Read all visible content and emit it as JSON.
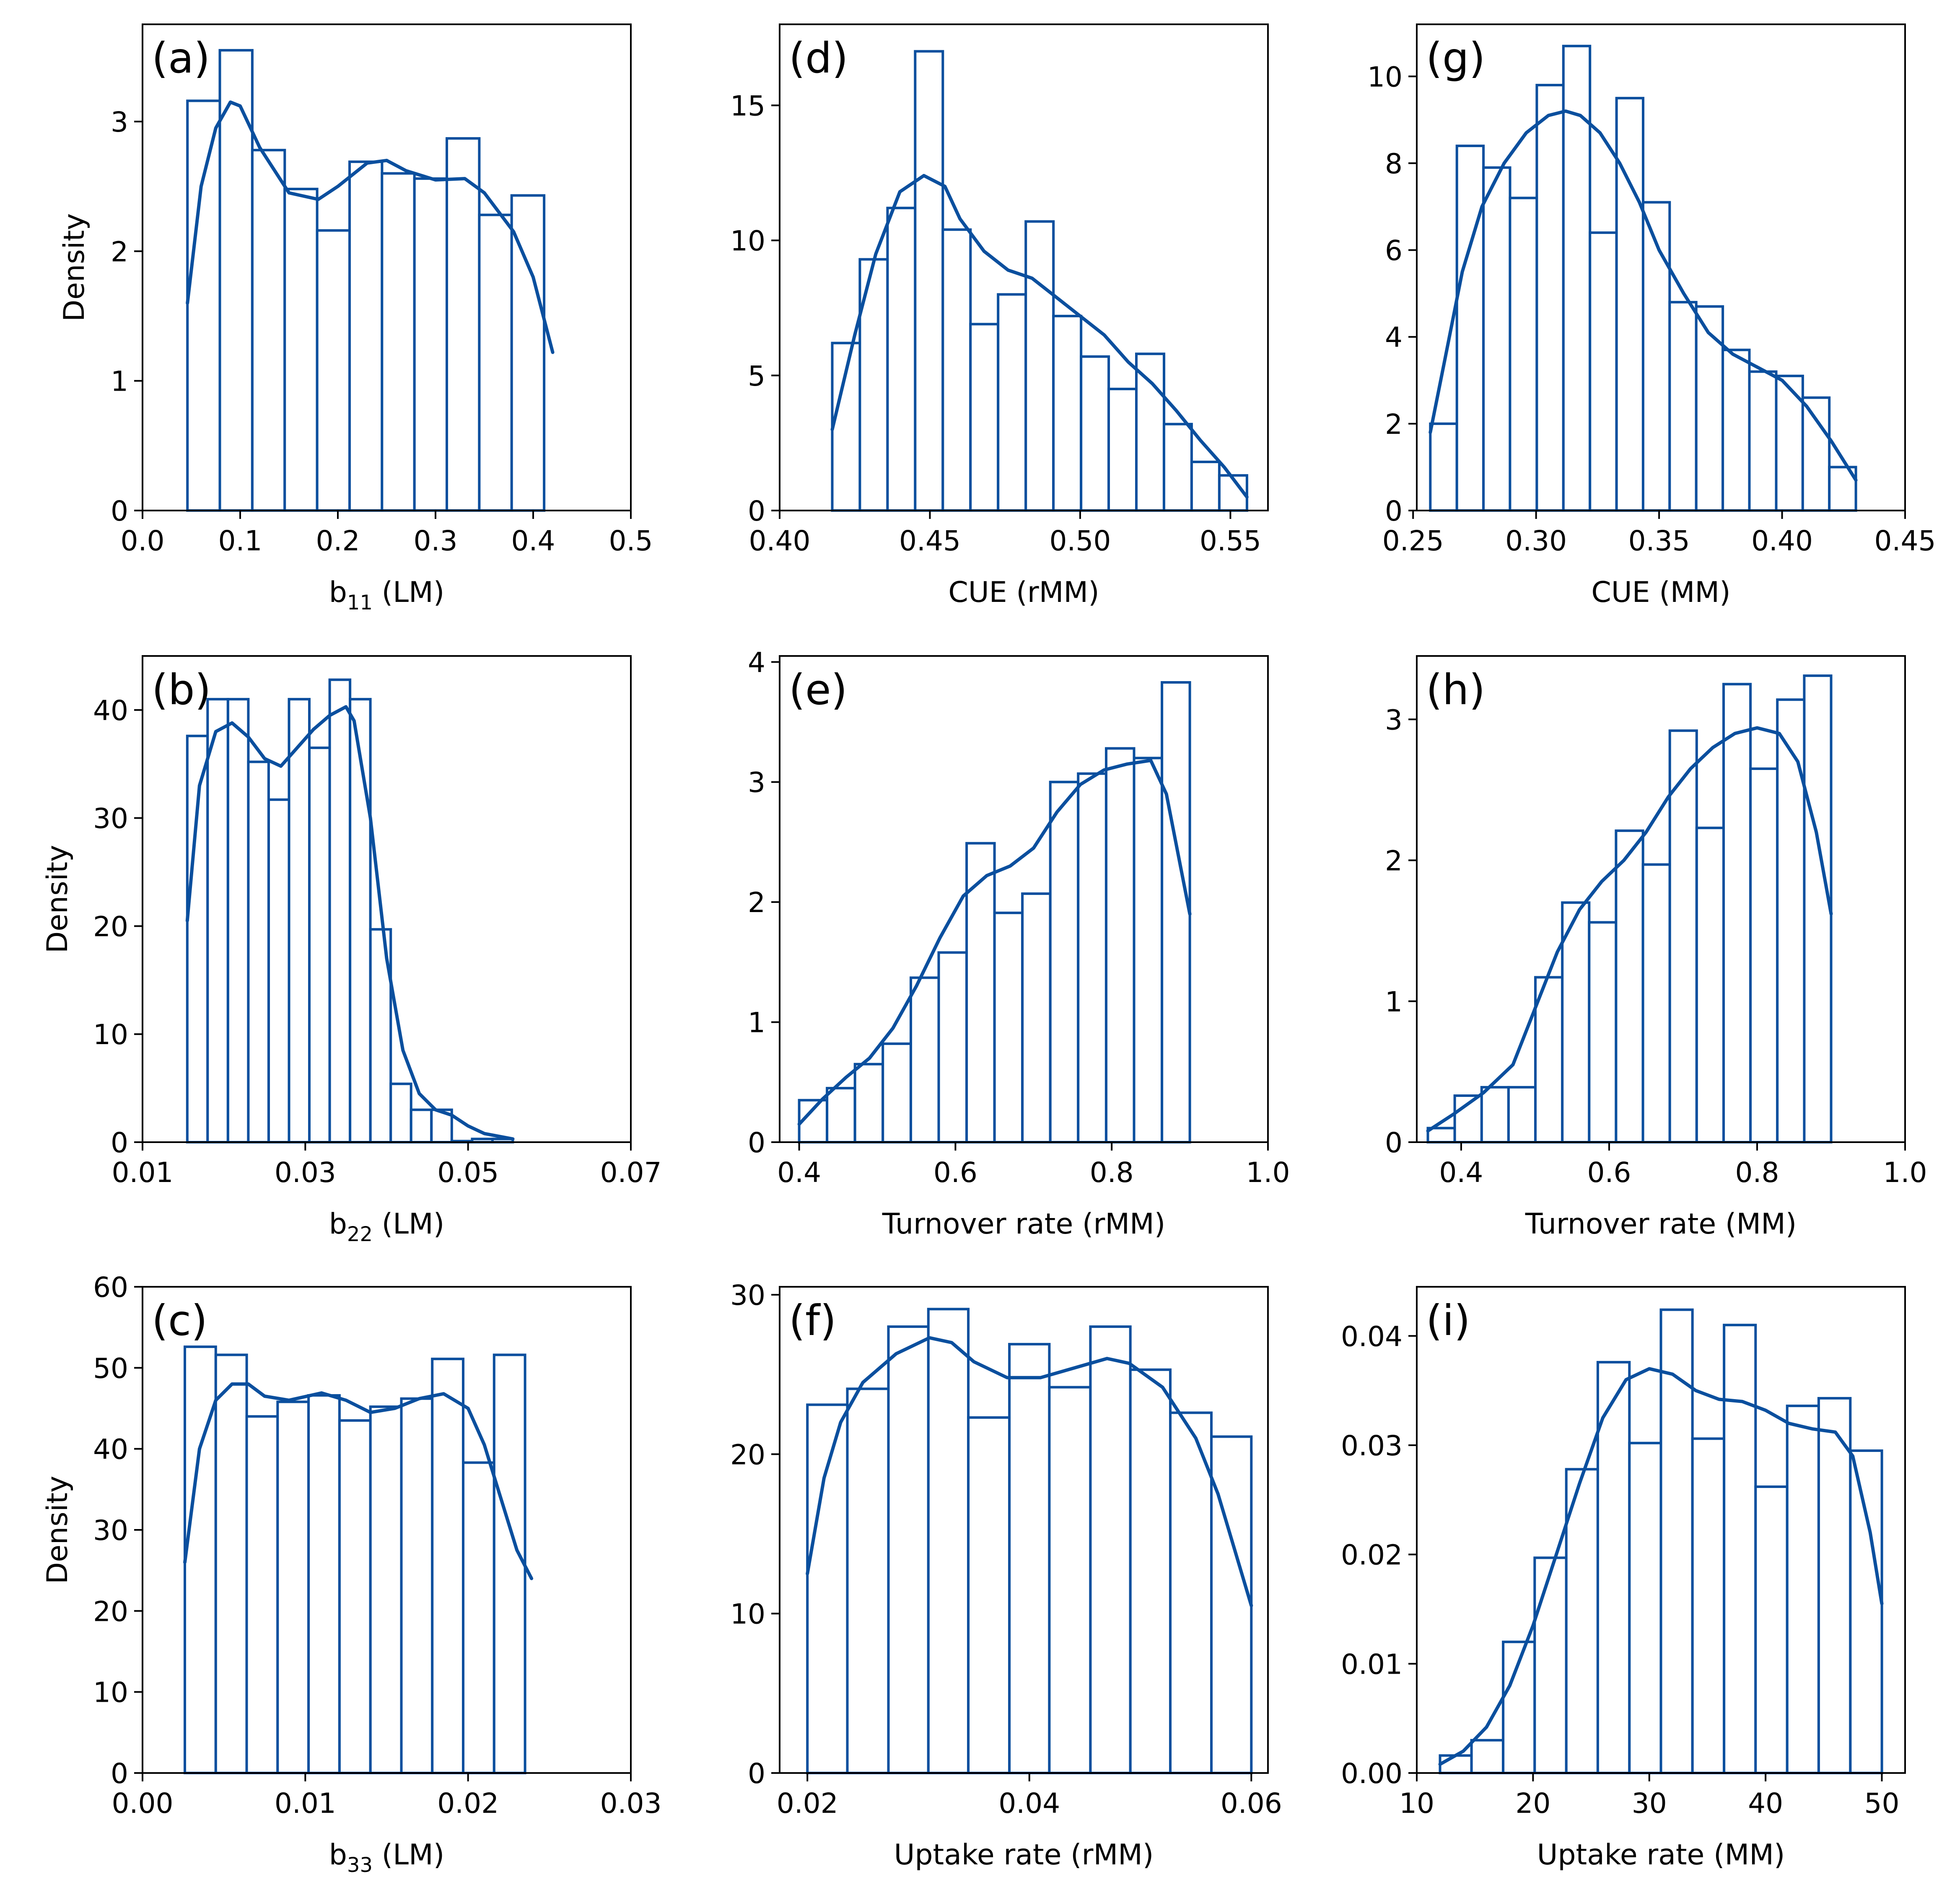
{
  "figure": {
    "line_color": "#0a4f9e",
    "ylabel": "Density"
  },
  "chart_data": [
    {
      "id": "a",
      "type": "bar",
      "panel_label": "(a)",
      "xlabel": {
        "main": "b",
        "sub": "11",
        "rest": " (LM)"
      },
      "ylabel": "Density",
      "xlim": [
        0.0,
        0.5
      ],
      "ylim": [
        0,
        3.75
      ],
      "xticks": [
        0.0,
        0.1,
        0.2,
        0.3,
        0.4,
        0.5
      ],
      "xtick_labels": [
        "0.0",
        "0.1",
        "0.2",
        "0.3",
        "0.4",
        "0.5"
      ],
      "yticks": [
        0,
        1,
        2,
        3
      ],
      "ytick_labels": [
        "0",
        "1",
        "2",
        "3"
      ],
      "bin_edges": [
        0.046,
        0.0792,
        0.1124,
        0.1456,
        0.1788,
        0.212,
        0.2452,
        0.2784,
        0.3116,
        0.3448,
        0.378,
        0.4112
      ],
      "bin_heights": [
        3.16,
        3.55,
        2.78,
        2.48,
        2.16,
        2.69,
        2.6,
        2.56,
        2.87,
        2.28,
        2.43
      ],
      "kde": {
        "x": [
          0.046,
          0.06,
          0.075,
          0.09,
          0.1,
          0.12,
          0.15,
          0.18,
          0.2,
          0.23,
          0.25,
          0.27,
          0.3,
          0.33,
          0.35,
          0.38,
          0.4,
          0.42
        ],
        "y": [
          1.6,
          2.5,
          2.95,
          3.15,
          3.12,
          2.8,
          2.45,
          2.4,
          2.5,
          2.68,
          2.7,
          2.62,
          2.55,
          2.56,
          2.45,
          2.15,
          1.8,
          1.22
        ]
      }
    },
    {
      "id": "b",
      "type": "bar",
      "panel_label": "(b)",
      "xlabel": {
        "main": "b",
        "sub": "22",
        "rest": " (LM)"
      },
      "ylabel": "Density",
      "xlim": [
        0.01,
        0.07
      ],
      "ylim": [
        0,
        45
      ],
      "xticks": [
        0.01,
        0.03,
        0.05,
        0.07
      ],
      "xtick_labels": [
        "0.01",
        "0.03",
        "0.05",
        "0.07"
      ],
      "yticks": [
        0,
        10,
        20,
        30,
        40
      ],
      "ytick_labels": [
        "0",
        "10",
        "20",
        "30",
        "40"
      ],
      "bin_edges": [
        0.0155,
        0.018,
        0.0205,
        0.023,
        0.0255,
        0.028,
        0.0305,
        0.033,
        0.0355,
        0.038,
        0.0405,
        0.043,
        0.0455,
        0.048,
        0.0505,
        0.053,
        0.0555
      ],
      "bin_heights": [
        37.6,
        41.0,
        41.0,
        35.2,
        31.7,
        41.0,
        36.5,
        42.8,
        41.0,
        19.7,
        5.4,
        3.0,
        3.0,
        0.1,
        0.3,
        0.3
      ],
      "kde": {
        "x": [
          0.0155,
          0.017,
          0.019,
          0.021,
          0.023,
          0.025,
          0.027,
          0.029,
          0.031,
          0.033,
          0.035,
          0.036,
          0.038,
          0.04,
          0.042,
          0.044,
          0.046,
          0.048,
          0.05,
          0.052,
          0.0555
        ],
        "y": [
          20.5,
          33.0,
          38.0,
          38.8,
          37.5,
          35.5,
          34.8,
          36.5,
          38.2,
          39.5,
          40.3,
          39.0,
          30.0,
          17.0,
          8.5,
          4.5,
          3.0,
          2.5,
          1.5,
          0.8,
          0.3
        ]
      }
    },
    {
      "id": "c",
      "type": "bar",
      "panel_label": "(c)",
      "xlabel": {
        "main": "b",
        "sub": "33",
        "rest": " (LM)"
      },
      "ylabel": "Density",
      "xlim": [
        0.0,
        0.03
      ],
      "ylim": [
        0,
        60
      ],
      "xticks": [
        0.0,
        0.01,
        0.02,
        0.03
      ],
      "xtick_labels": [
        "0.00",
        "0.01",
        "0.02",
        "0.03"
      ],
      "yticks": [
        0,
        10,
        20,
        30,
        40,
        50,
        60
      ],
      "ytick_labels": [
        "0",
        "10",
        "20",
        "30",
        "40",
        "50",
        "60"
      ],
      "bin_edges": [
        0.0026,
        0.0045,
        0.0064,
        0.0083,
        0.0102,
        0.0121,
        0.014,
        0.0159,
        0.0178,
        0.0197,
        0.0216,
        0.0235
      ],
      "bin_heights": [
        52.6,
        51.6,
        44.0,
        45.8,
        46.6,
        43.5,
        45.2,
        46.2,
        51.1,
        38.3,
        51.6
      ],
      "kde": {
        "x": [
          0.0026,
          0.0035,
          0.0045,
          0.0055,
          0.0065,
          0.0075,
          0.009,
          0.011,
          0.0125,
          0.014,
          0.0155,
          0.017,
          0.0185,
          0.02,
          0.021,
          0.022,
          0.023,
          0.0239
        ],
        "y": [
          26.0,
          40.0,
          46.0,
          48.0,
          48.0,
          46.5,
          46.0,
          46.9,
          46.0,
          44.5,
          45.0,
          46.2,
          46.8,
          45.0,
          40.5,
          34.0,
          27.5,
          24.0
        ]
      }
    },
    {
      "id": "d",
      "type": "bar",
      "panel_label": "(d)",
      "xlabel": {
        "main": "CUE (rMM)",
        "sub": "",
        "rest": ""
      },
      "ylabel": "",
      "xlim": [
        0.4,
        0.5625
      ],
      "ylim": [
        0,
        18
      ],
      "xticks": [
        0.4,
        0.45,
        0.5,
        0.55
      ],
      "xtick_labels": [
        "0.40",
        "0.45",
        "0.50",
        "0.55"
      ],
      "yticks": [
        0,
        5,
        10,
        15
      ],
      "ytick_labels": [
        "0",
        "5",
        "10",
        "15"
      ],
      "bin_edges": [
        0.4175,
        0.4267,
        0.4359,
        0.4451,
        0.4543,
        0.4635,
        0.4727,
        0.4819,
        0.4911,
        0.5003,
        0.5095,
        0.5187,
        0.5279,
        0.5371,
        0.5463,
        0.5555
      ],
      "bin_heights": [
        6.2,
        9.3,
        11.2,
        17.0,
        10.4,
        6.9,
        8.0,
        10.7,
        7.2,
        5.7,
        4.5,
        5.8,
        3.2,
        1.8,
        1.3
      ],
      "kde": {
        "x": [
          0.4175,
          0.425,
          0.432,
          0.44,
          0.448,
          0.455,
          0.46,
          0.468,
          0.476,
          0.484,
          0.492,
          0.5,
          0.508,
          0.516,
          0.524,
          0.532,
          0.54,
          0.548,
          0.5555
        ],
        "y": [
          3.0,
          6.5,
          9.5,
          11.8,
          12.4,
          12.0,
          10.8,
          9.6,
          8.9,
          8.6,
          7.9,
          7.2,
          6.5,
          5.5,
          4.7,
          3.7,
          2.6,
          1.6,
          0.5
        ]
      }
    },
    {
      "id": "e",
      "type": "bar",
      "panel_label": "(e)",
      "xlabel": {
        "main": "Turnover rate (rMM)",
        "sub": "",
        "rest": ""
      },
      "ylabel": "",
      "xlim": [
        0.375,
        1.0
      ],
      "ylim": [
        0,
        4.05
      ],
      "xticks": [
        0.4,
        0.6,
        0.8,
        1.0
      ],
      "xtick_labels": [
        "0.4",
        "0.6",
        "0.8",
        "1.0"
      ],
      "yticks": [
        0,
        1,
        2,
        3,
        4
      ],
      "ytick_labels": [
        "0",
        "1",
        "2",
        "3",
        "4"
      ],
      "bin_edges": [
        0.4,
        0.4357,
        0.4714,
        0.5071,
        0.5429,
        0.5786,
        0.6143,
        0.65,
        0.6857,
        0.7214,
        0.7571,
        0.7929,
        0.8286,
        0.8643,
        0.9
      ],
      "bin_heights": [
        0.35,
        0.45,
        0.65,
        0.82,
        1.37,
        1.58,
        2.49,
        1.91,
        2.07,
        3.0,
        3.07,
        3.28,
        3.2,
        3.83
      ],
      "kde": {
        "x": [
          0.4,
          0.43,
          0.46,
          0.49,
          0.52,
          0.55,
          0.58,
          0.61,
          0.64,
          0.67,
          0.7,
          0.73,
          0.76,
          0.79,
          0.82,
          0.85,
          0.87,
          0.885,
          0.9
        ],
        "y": [
          0.15,
          0.36,
          0.54,
          0.7,
          0.95,
          1.3,
          1.7,
          2.05,
          2.22,
          2.3,
          2.45,
          2.75,
          2.98,
          3.1,
          3.15,
          3.18,
          2.9,
          2.4,
          1.9
        ]
      }
    },
    {
      "id": "f",
      "type": "bar",
      "panel_label": "(f)",
      "xlabel": {
        "main": "Uptake rate (rMM)",
        "sub": "",
        "rest": ""
      },
      "ylabel": "",
      "xlim": [
        0.0175,
        0.0615
      ],
      "ylim": [
        0,
        30.5
      ],
      "xticks": [
        0.02,
        0.04,
        0.06
      ],
      "xtick_labels": [
        "0.02",
        "0.04",
        "0.06"
      ],
      "yticks": [
        0,
        10,
        20,
        30
      ],
      "ytick_labels": [
        "0",
        "10",
        "20",
        "30"
      ],
      "bin_edges": [
        0.02,
        0.0236,
        0.0273,
        0.0309,
        0.0345,
        0.0382,
        0.0418,
        0.0455,
        0.0491,
        0.0527,
        0.0564,
        0.06
      ],
      "bin_heights": [
        23.1,
        24.1,
        28.0,
        29.1,
        22.3,
        26.9,
        24.2,
        28.0,
        25.3,
        22.6,
        21.1
      ],
      "kde": {
        "x": [
          0.02,
          0.0215,
          0.023,
          0.025,
          0.028,
          0.031,
          0.033,
          0.035,
          0.038,
          0.041,
          0.044,
          0.047,
          0.049,
          0.052,
          0.055,
          0.057,
          0.0585,
          0.06
        ],
        "y": [
          12.5,
          18.5,
          22.0,
          24.5,
          26.3,
          27.3,
          27.0,
          25.8,
          24.8,
          24.8,
          25.4,
          26.0,
          25.7,
          24.2,
          21.0,
          17.5,
          14.0,
          10.5
        ]
      }
    },
    {
      "id": "g",
      "type": "bar",
      "panel_label": "(g)",
      "xlabel": {
        "main": "CUE (MM)",
        "sub": "",
        "rest": ""
      },
      "ylabel": "",
      "xlim": [
        0.2515,
        0.45
      ],
      "ylim": [
        0,
        11.2
      ],
      "xticks": [
        0.25,
        0.3,
        0.35,
        0.4,
        0.45
      ],
      "xtick_labels": [
        "0.25",
        "0.30",
        "0.35",
        "0.40",
        "0.45"
      ],
      "yticks": [
        0,
        2,
        4,
        6,
        8,
        10
      ],
      "ytick_labels": [
        "0",
        "2",
        "4",
        "6",
        "8",
        "10"
      ],
      "bin_edges": [
        0.257,
        0.2678,
        0.2786,
        0.2894,
        0.3003,
        0.3111,
        0.3219,
        0.3327,
        0.3435,
        0.3543,
        0.3651,
        0.3759,
        0.3867,
        0.3976,
        0.4084,
        0.4192,
        0.43
      ],
      "bin_heights": [
        2.0,
        8.4,
        7.9,
        7.2,
        9.8,
        10.7,
        6.4,
        9.5,
        7.1,
        4.8,
        4.7,
        3.7,
        3.2,
        3.1,
        2.6,
        1.0
      ],
      "kde": {
        "x": [
          0.257,
          0.263,
          0.27,
          0.278,
          0.287,
          0.296,
          0.305,
          0.312,
          0.318,
          0.326,
          0.334,
          0.342,
          0.35,
          0.36,
          0.37,
          0.38,
          0.39,
          0.4,
          0.41,
          0.42,
          0.43
        ],
        "y": [
          1.8,
          3.5,
          5.5,
          7.0,
          8.0,
          8.7,
          9.1,
          9.2,
          9.1,
          8.7,
          8.0,
          7.1,
          6.0,
          5.0,
          4.1,
          3.6,
          3.3,
          3.0,
          2.4,
          1.6,
          0.7
        ]
      }
    },
    {
      "id": "h",
      "type": "bar",
      "panel_label": "(h)",
      "xlabel": {
        "main": "Turnover rate (MM)",
        "sub": "",
        "rest": ""
      },
      "ylabel": "",
      "xlim": [
        0.34,
        1.0
      ],
      "ylim": [
        0,
        3.45
      ],
      "xticks": [
        0.4,
        0.6,
        0.8,
        1.0
      ],
      "xtick_labels": [
        "0.4",
        "0.6",
        "0.8",
        "1.0"
      ],
      "yticks": [
        0,
        1,
        2,
        3
      ],
      "ytick_labels": [
        "0",
        "1",
        "2",
        "3"
      ],
      "bin_edges": [
        0.355,
        0.3913,
        0.4277,
        0.464,
        0.5003,
        0.5367,
        0.573,
        0.6093,
        0.6457,
        0.682,
        0.7183,
        0.7547,
        0.791,
        0.8273,
        0.8637,
        0.9
      ],
      "bin_heights": [
        0.1,
        0.33,
        0.39,
        0.39,
        1.17,
        1.7,
        1.56,
        2.21,
        1.97,
        2.92,
        2.23,
        3.25,
        2.65,
        3.14,
        3.31
      ],
      "kde": {
        "x": [
          0.355,
          0.39,
          0.43,
          0.47,
          0.5,
          0.53,
          0.56,
          0.59,
          0.62,
          0.65,
          0.68,
          0.71,
          0.74,
          0.77,
          0.8,
          0.83,
          0.855,
          0.88,
          0.9
        ],
        "y": [
          0.08,
          0.2,
          0.35,
          0.55,
          0.95,
          1.35,
          1.65,
          1.85,
          2.0,
          2.2,
          2.45,
          2.65,
          2.8,
          2.9,
          2.94,
          2.9,
          2.7,
          2.2,
          1.62
        ]
      }
    },
    {
      "id": "i",
      "type": "bar",
      "panel_label": "(i)",
      "xlabel": {
        "main": "Uptake rate (MM)",
        "sub": "",
        "rest": ""
      },
      "ylabel": "",
      "xlim": [
        10,
        52
      ],
      "ylim": [
        0,
        0.0445
      ],
      "xticks": [
        10,
        20,
        30,
        40,
        50
      ],
      "xtick_labels": [
        "10",
        "20",
        "30",
        "40",
        "50"
      ],
      "yticks": [
        0,
        0.01,
        0.02,
        0.03,
        0.04
      ],
      "ytick_labels": [
        "0.00",
        "0.01",
        "0.02",
        "0.03",
        "0.04"
      ],
      "bin_edges": [
        12.0,
        14.71,
        17.43,
        20.14,
        22.86,
        25.57,
        28.29,
        31.0,
        33.71,
        36.43,
        39.14,
        41.86,
        44.57,
        47.29,
        50.0
      ],
      "bin_heights": [
        0.0016,
        0.003,
        0.012,
        0.0197,
        0.0278,
        0.0376,
        0.0302,
        0.0424,
        0.0306,
        0.041,
        0.0262,
        0.0336,
        0.0343,
        0.0295
      ],
      "kde": {
        "x": [
          12.0,
          14.0,
          16.0,
          18.0,
          20.0,
          22.0,
          24.0,
          26.0,
          28.0,
          30.0,
          32.0,
          34.0,
          36.0,
          38.0,
          40.0,
          42.0,
          44.0,
          46.0,
          47.5,
          49.0,
          50.0
        ],
        "y": [
          0.0008,
          0.002,
          0.0042,
          0.008,
          0.0135,
          0.02,
          0.0265,
          0.0325,
          0.036,
          0.037,
          0.0365,
          0.035,
          0.0342,
          0.034,
          0.0332,
          0.032,
          0.0315,
          0.0312,
          0.029,
          0.022,
          0.0155
        ]
      }
    }
  ]
}
